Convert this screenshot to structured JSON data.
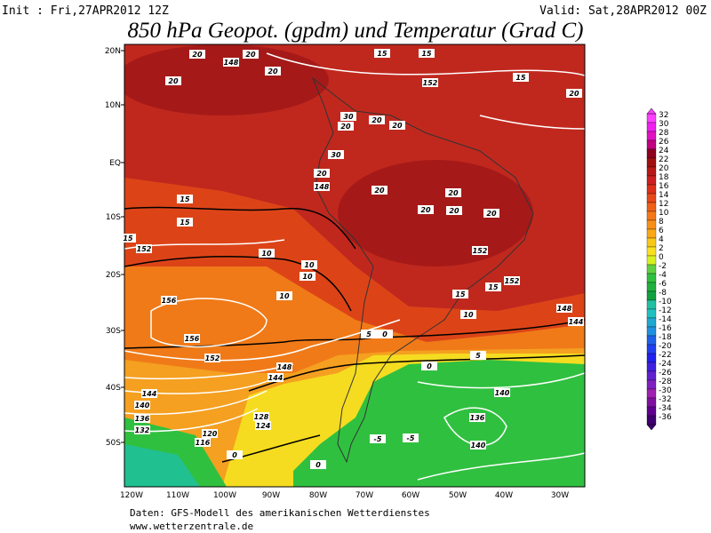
{
  "header": {
    "init": "Init : Fri,27APR2012 12Z",
    "valid": "Valid: Sat,28APR2012 00Z",
    "title": "850 hPa Geopot. (gpdm) und Temperatur (Grad C)"
  },
  "map": {
    "lat_labels": [
      "20N",
      "10N",
      "EQ",
      "10S",
      "20S",
      "30S",
      "40S",
      "50S"
    ],
    "lon_labels": [
      "120W",
      "110W",
      "100W",
      "90W",
      "80W",
      "70W",
      "60W",
      "50W",
      "40W",
      "30W"
    ],
    "contour_labels": [
      "20",
      "20",
      "148",
      "20",
      "20",
      "15",
      "15",
      "152",
      "15",
      "20",
      "30",
      "20",
      "20",
      "20",
      "30",
      "20",
      "148",
      "20",
      "20",
      "20",
      "20",
      "20",
      "15",
      "15",
      "15",
      "152",
      "10",
      "10",
      "10",
      "10",
      "156",
      "156",
      "152",
      "148",
      "144",
      "152",
      "15",
      "15",
      "152",
      "10",
      "148",
      "144",
      "5",
      "0",
      "5",
      "0",
      "140",
      "136",
      "140",
      "-5",
      "-5",
      "0",
      "144",
      "140",
      "136",
      "132",
      "128",
      "124",
      "120",
      "116",
      "0"
    ]
  },
  "colorbar": {
    "labels": [
      32,
      30,
      28,
      26,
      24,
      22,
      20,
      18,
      16,
      14,
      12,
      10,
      8,
      6,
      4,
      2,
      0,
      -2,
      -4,
      -6,
      -8,
      -10,
      -12,
      -14,
      -16,
      -18,
      -20,
      -22,
      -24,
      -26,
      -28,
      -30,
      -32,
      -34,
      -36
    ]
  },
  "footer": {
    "source": "Daten: GFS-Modell des amerikanischen Wetterdienstes",
    "site": "www.wetterzentrale.de"
  }
}
